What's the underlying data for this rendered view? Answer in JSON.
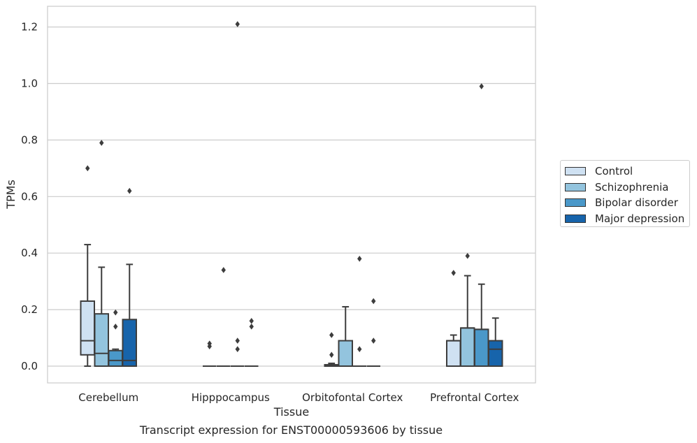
{
  "caption": "Transcript expression for ENST00000593606 by tissue",
  "chart_data": {
    "type": "boxplot",
    "title": "",
    "xlabel": "Tissue",
    "ylabel": "TPMs",
    "ylim": [
      -0.06,
      1.27
    ],
    "yticks": [
      0.0,
      0.2,
      0.4,
      0.6,
      0.8,
      1.0,
      1.2
    ],
    "ytick_labels": [
      "0.0",
      "0.2",
      "0.4",
      "0.6",
      "0.8",
      "1.0",
      "1.2"
    ],
    "grid": "horizontal",
    "legend_position": "right",
    "categories": [
      "Cerebellum",
      "Hipppocampus",
      "Orbitofontal Cortex",
      "Prefrontal Cortex"
    ],
    "series": [
      {
        "name": "Control",
        "color": "#cfe1f2",
        "boxes": [
          {
            "whislo": 0.0,
            "q1": 0.04,
            "med": 0.09,
            "q3": 0.23,
            "whishi": 0.43,
            "fliers": [
              0.7
            ]
          },
          {
            "whislo": 0.0,
            "q1": 0.0,
            "med": 0.0,
            "q3": 0.0,
            "whishi": 0.0,
            "fliers": [
              0.07,
              0.08
            ]
          },
          {
            "whislo": 0.0,
            "q1": 0.0,
            "med": 0.0,
            "q3": 0.005,
            "whishi": 0.01,
            "fliers": [
              0.04,
              0.11
            ]
          },
          {
            "whislo": 0.0,
            "q1": 0.0,
            "med": 0.09,
            "q3": 0.09,
            "whishi": 0.11,
            "fliers": [
              0.33
            ]
          }
        ]
      },
      {
        "name": "Schizophrenia",
        "color": "#93c4de",
        "boxes": [
          {
            "whislo": 0.0,
            "q1": 0.0,
            "med": 0.045,
            "q3": 0.185,
            "whishi": 0.35,
            "fliers": [
              0.79
            ]
          },
          {
            "whislo": 0.0,
            "q1": 0.0,
            "med": 0.0,
            "q3": 0.0,
            "whishi": 0.0,
            "fliers": [
              0.34
            ]
          },
          {
            "whislo": 0.0,
            "q1": 0.0,
            "med": 0.0,
            "q3": 0.09,
            "whishi": 0.21,
            "fliers": []
          },
          {
            "whislo": 0.0,
            "q1": 0.0,
            "med": 0.135,
            "q3": 0.135,
            "whishi": 0.32,
            "fliers": [
              0.39
            ]
          }
        ]
      },
      {
        "name": "Bipolar disorder",
        "color": "#4a98c9",
        "boxes": [
          {
            "whislo": 0.0,
            "q1": 0.0,
            "med": 0.02,
            "q3": 0.055,
            "whishi": 0.06,
            "fliers": [
              0.14,
              0.19
            ]
          },
          {
            "whislo": 0.0,
            "q1": 0.0,
            "med": 0.0,
            "q3": 0.0,
            "whishi": 0.0,
            "fliers": [
              0.06,
              0.09,
              1.21
            ]
          },
          {
            "whislo": 0.0,
            "q1": 0.0,
            "med": 0.0,
            "q3": 0.0,
            "whishi": 0.0,
            "fliers": [
              0.06,
              0.38
            ]
          },
          {
            "whislo": 0.0,
            "q1": 0.0,
            "med": 0.13,
            "q3": 0.13,
            "whishi": 0.29,
            "fliers": [
              0.99
            ]
          }
        ]
      },
      {
        "name": "Major depression",
        "color": "#1764ab",
        "boxes": [
          {
            "whislo": 0.0,
            "q1": 0.0,
            "med": 0.02,
            "q3": 0.165,
            "whishi": 0.36,
            "fliers": [
              0.62
            ]
          },
          {
            "whislo": 0.0,
            "q1": 0.0,
            "med": 0.0,
            "q3": 0.0,
            "whishi": 0.0,
            "fliers": [
              0.14,
              0.16
            ]
          },
          {
            "whislo": 0.0,
            "q1": 0.0,
            "med": 0.0,
            "q3": 0.0,
            "whishi": 0.0,
            "fliers": [
              0.09,
              0.23
            ]
          },
          {
            "whislo": 0.0,
            "q1": 0.0,
            "med": 0.06,
            "q3": 0.09,
            "whishi": 0.17,
            "fliers": []
          }
        ]
      }
    ]
  }
}
